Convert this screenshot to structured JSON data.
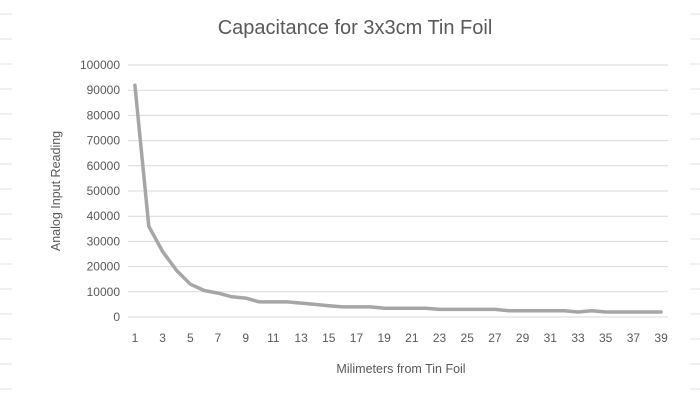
{
  "chart_data": {
    "type": "line",
    "title": "Capacitance for 3x3cm Tin Foil",
    "xlabel": "Milimeters from Tin Foil",
    "ylabel": "Analog Input Reading",
    "ylim": [
      0,
      100000
    ],
    "yticks": [
      "0",
      "10000",
      "20000",
      "30000",
      "40000",
      "50000",
      "60000",
      "70000",
      "80000",
      "90000",
      "100000"
    ],
    "xticks": [
      "1",
      "3",
      "5",
      "7",
      "9",
      "11",
      "13",
      "15",
      "17",
      "19",
      "21",
      "23",
      "25",
      "27",
      "29",
      "31",
      "33",
      "35",
      "37",
      "39"
    ],
    "grid": true,
    "legend": "none",
    "x": [
      1,
      2,
      3,
      4,
      5,
      6,
      7,
      8,
      9,
      10,
      11,
      12,
      13,
      14,
      15,
      16,
      17,
      18,
      19,
      20,
      21,
      22,
      23,
      24,
      25,
      26,
      27,
      28,
      29,
      30,
      31,
      32,
      33,
      34,
      35,
      36,
      37,
      38,
      39
    ],
    "series": [
      {
        "color": "#a6a6a6",
        "values": [
          92000,
          36000,
          26000,
          18500,
          13000,
          10500,
          9500,
          8000,
          7500,
          6000,
          6000,
          6000,
          5500,
          5000,
          4500,
          4000,
          4000,
          4000,
          3500,
          3500,
          3500,
          3500,
          3000,
          3000,
          3000,
          3000,
          3000,
          2500,
          2500,
          2500,
          2500,
          2500,
          2000,
          2500,
          2000,
          2000,
          2000,
          2000,
          2000
        ]
      }
    ]
  }
}
